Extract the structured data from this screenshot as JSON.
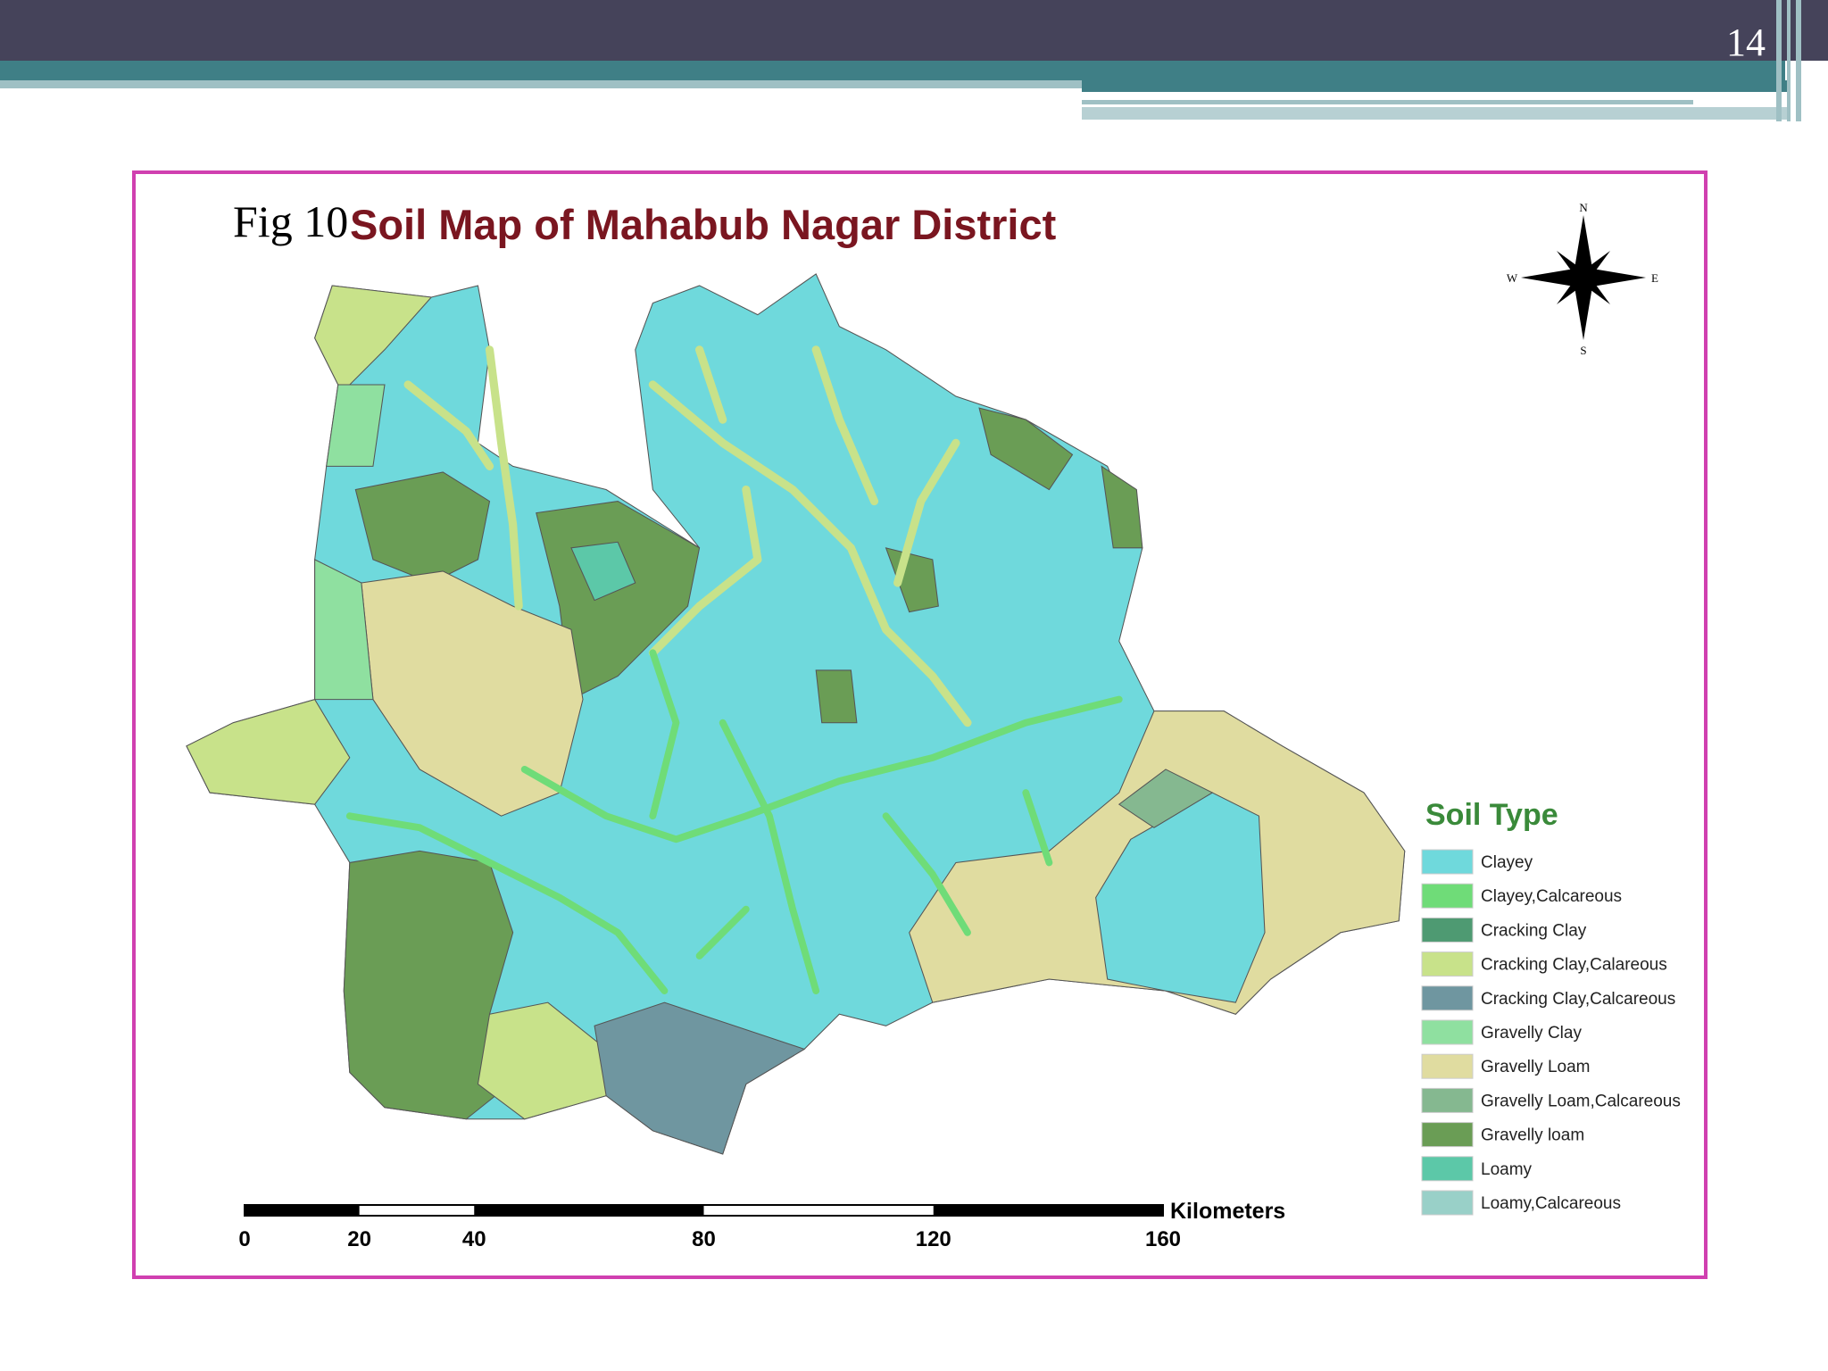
{
  "slide_number": "14",
  "figure_label": "Fig 10",
  "map": {
    "title": "Soil Map of Mahabub Nagar District",
    "compass": {
      "north": "N",
      "south": "S",
      "east": "E",
      "west": "W"
    },
    "legend": {
      "title": "Soil Type",
      "items": [
        {
          "label": "Clayey",
          "color": "#6fd9dc"
        },
        {
          "label": "Clayey,Calcareous",
          "color": "#6fdc78"
        },
        {
          "label": "Cracking Clay",
          "color": "#4e9a72"
        },
        {
          "label": "Cracking Clay,Calareous",
          "color": "#c8e28a"
        },
        {
          "label": "Cracking Clay,Calcareous",
          "color": "#6f96a0"
        },
        {
          "label": "Gravelly Clay",
          "color": "#8fe0a0"
        },
        {
          "label": "Gravelly Loam",
          "color": "#e0dca0"
        },
        {
          "label": "Gravelly Loam,Calcareous",
          "color": "#85b890"
        },
        {
          "label": "Gravelly loam",
          "color": "#6a9d55"
        },
        {
          "label": "Loamy",
          "color": "#5cc8a8"
        },
        {
          "label": "Loamy,Calcareous",
          "color": "#99d0c8"
        }
      ]
    },
    "scale_bar": {
      "unit": "Kilometers",
      "ticks": [
        0,
        20,
        40,
        80,
        120,
        160
      ]
    }
  }
}
